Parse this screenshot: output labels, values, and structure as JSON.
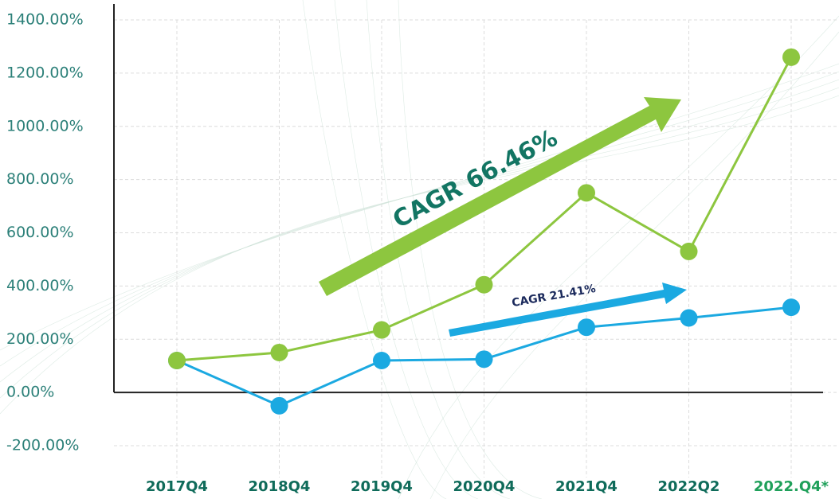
{
  "chart_data": {
    "type": "line",
    "categories": [
      "2017Q4",
      "2018Q4",
      "2019Q4",
      "2020Q4",
      "2021Q4",
      "2022Q2",
      "2022.Q4*"
    ],
    "series": [
      {
        "name": "CAGR 66.46%",
        "color": "#8dc63f",
        "values": [
          120,
          150,
          235,
          405,
          750,
          530,
          1260
        ]
      },
      {
        "name": "CAGR 21.41%",
        "color": "#1ba9e1",
        "values": [
          120,
          -50,
          120,
          125,
          245,
          280,
          320
        ]
      }
    ],
    "ylim": [
      -200,
      1400
    ],
    "yticks": [
      {
        "value": -200,
        "label": "-200.00%"
      },
      {
        "value": 0,
        "label": "0.00%"
      },
      {
        "value": 200,
        "label": "200.00%"
      },
      {
        "value": 400,
        "label": "400.00%"
      },
      {
        "value": 600,
        "label": "600.00%"
      },
      {
        "value": 800,
        "label": "800.00%"
      },
      {
        "value": 1000,
        "label": "1000.00%"
      },
      {
        "value": 1200,
        "label": "1200.00%"
      },
      {
        "value": 1400,
        "label": "1400.00%"
      }
    ],
    "grid": true
  }
}
